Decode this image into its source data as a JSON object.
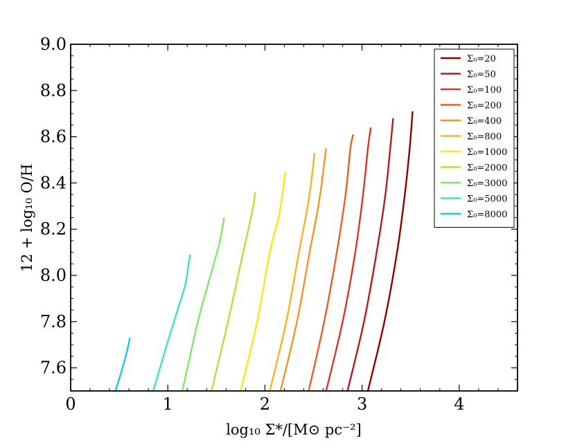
{
  "chart_data": {
    "type": "line",
    "title": "",
    "xlabel": "log₁₀ Σ*/[M⊙ pc⁻²]",
    "ylabel": "12 + log₁₀ O/H",
    "xlim": [
      0,
      4.6
    ],
    "ylim": [
      7.5,
      9.0
    ],
    "xticks": [
      "0",
      "1",
      "2",
      "3",
      "4"
    ],
    "yticks": [
      "7.6",
      "7.8",
      "8.0",
      "8.2",
      "8.4",
      "8.6",
      "8.8",
      "9.0"
    ],
    "grid": false,
    "legend_position": "top-right",
    "series": [
      {
        "name": "Σ₀=20",
        "color": "#8b0000",
        "x": [
          3.06,
          3.23,
          3.36,
          3.44,
          3.49,
          3.52
        ],
        "y": [
          7.5,
          7.8,
          8.1,
          8.35,
          8.55,
          8.71
        ]
      },
      {
        "name": "Σ₀=50",
        "color": "#c0141c",
        "x": [
          2.85,
          3.02,
          3.15,
          3.24,
          3.29,
          3.32
        ],
        "y": [
          7.5,
          7.8,
          8.1,
          8.35,
          8.55,
          8.68
        ]
      },
      {
        "name": "Σ₀=100",
        "color": "#e03225",
        "x": [
          2.63,
          2.8,
          2.93,
          3.01,
          3.06,
          3.09
        ],
        "y": [
          7.5,
          7.8,
          8.1,
          8.35,
          8.55,
          8.64
        ]
      },
      {
        "name": "Σ₀=200",
        "color": "#f05a28",
        "x": [
          2.45,
          2.61,
          2.74,
          2.83,
          2.88,
          2.91
        ],
        "y": [
          7.5,
          7.8,
          8.1,
          8.35,
          8.55,
          8.61
        ]
      },
      {
        "name": "Σ₀=400",
        "color": "#f7931e",
        "x": [
          2.16,
          2.33,
          2.46,
          2.55,
          2.6,
          2.63
        ],
        "y": [
          7.5,
          7.8,
          8.1,
          8.3,
          8.45,
          8.55
        ]
      },
      {
        "name": "Σ₀=800",
        "color": "#fbb11c",
        "x": [
          2.05,
          2.22,
          2.35,
          2.44,
          2.49,
          2.51
        ],
        "y": [
          7.5,
          7.8,
          8.1,
          8.3,
          8.45,
          8.53
        ]
      },
      {
        "name": "Σ₀=1000",
        "color": "#f5ea14",
        "x": [
          1.75,
          1.92,
          2.05,
          2.14,
          2.19,
          2.21
        ],
        "y": [
          7.5,
          7.8,
          8.1,
          8.25,
          8.38,
          8.45
        ]
      },
      {
        "name": "Σ₀=2000",
        "color": "#b5e03a",
        "x": [
          1.45,
          1.62,
          1.75,
          1.83,
          1.88,
          1.9
        ],
        "y": [
          7.5,
          7.8,
          8.05,
          8.2,
          8.3,
          8.36
        ]
      },
      {
        "name": "Σ₀=3000",
        "color": "#7ee86a",
        "x": [
          1.15,
          1.31,
          1.44,
          1.52,
          1.56,
          1.58
        ],
        "y": [
          7.5,
          7.8,
          8.0,
          8.12,
          8.2,
          8.25
        ]
      },
      {
        "name": "Σ₀=5000",
        "color": "#3be8b0",
        "x": [
          0.85,
          0.99,
          1.1,
          1.18,
          1.21,
          1.23
        ],
        "y": [
          7.5,
          7.7,
          7.85,
          7.96,
          8.04,
          8.09
        ]
      },
      {
        "name": "Σ₀=8000",
        "color": "#19c4ee",
        "x": [
          0.46,
          0.52,
          0.56,
          0.59,
          0.61
        ],
        "y": [
          7.5,
          7.58,
          7.64,
          7.69,
          7.73
        ]
      }
    ]
  }
}
